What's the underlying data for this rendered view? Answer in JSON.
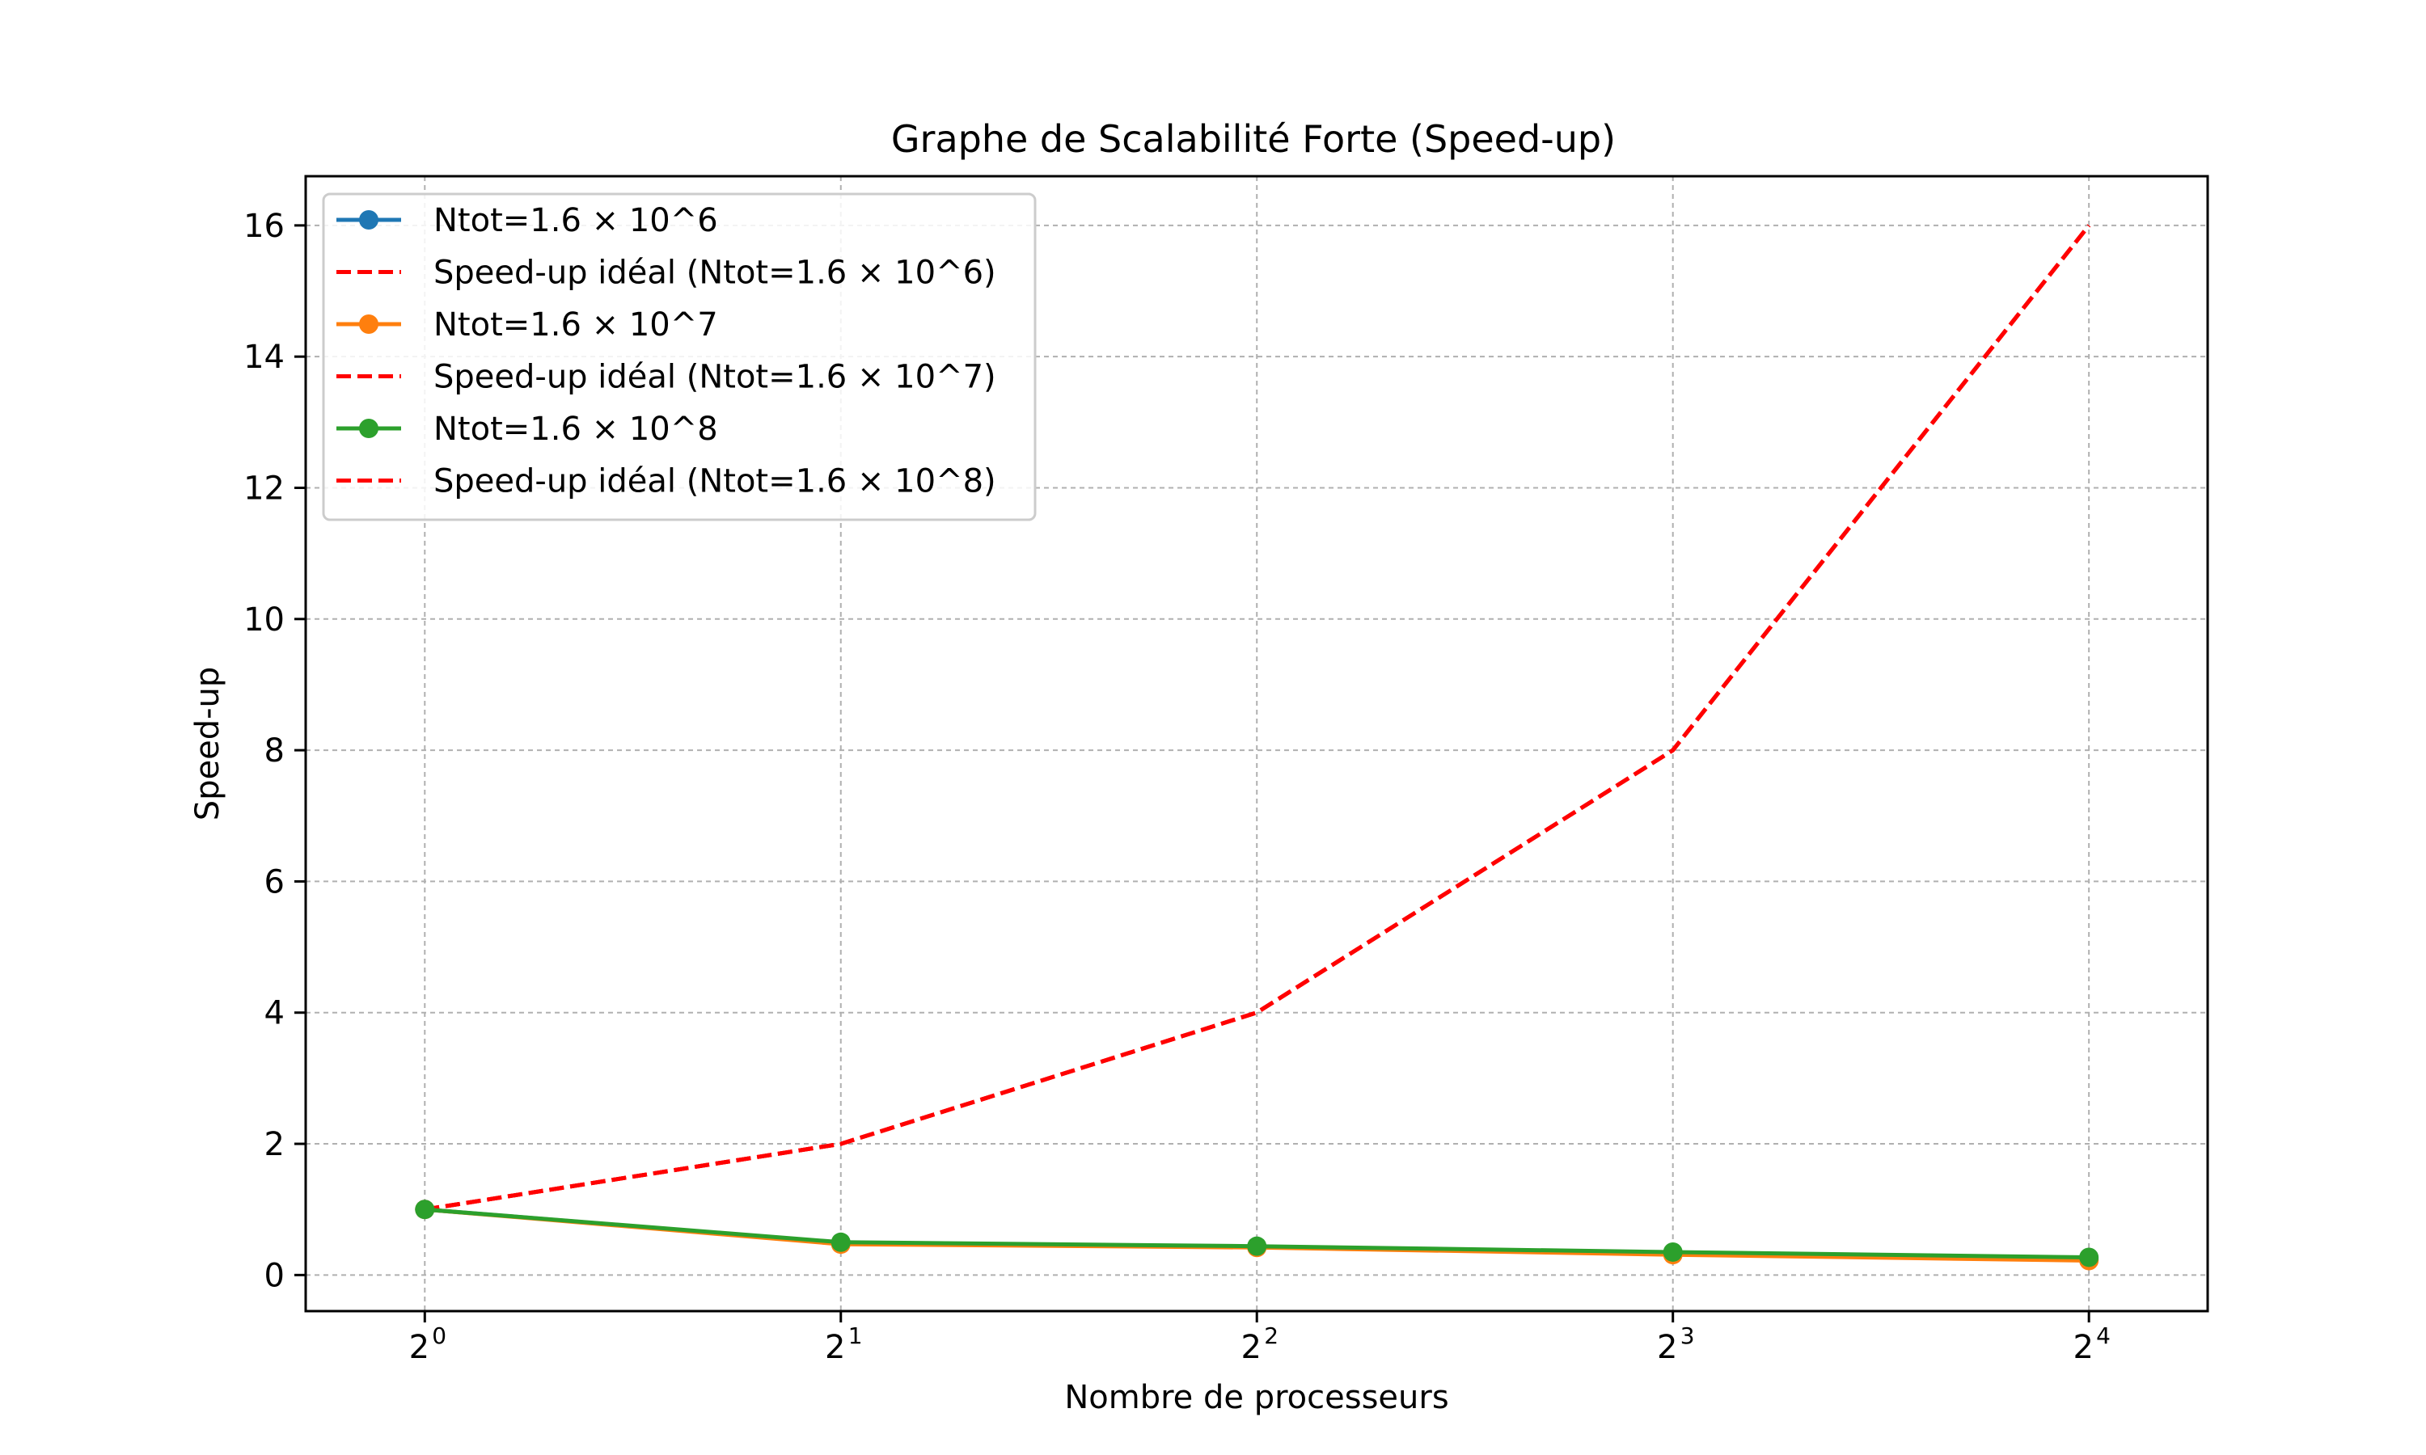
{
  "chart_data": {
    "type": "line",
    "title": "Graphe de Scalabilité Forte (Speed-up)",
    "xlabel": "Nombre de processeurs",
    "ylabel": "Speed-up",
    "x_scale": "log2",
    "x": [
      1,
      2,
      4,
      8,
      16
    ],
    "x_ticks": [
      {
        "base": "2",
        "exp": "0"
      },
      {
        "base": "2",
        "exp": "1"
      },
      {
        "base": "2",
        "exp": "2"
      },
      {
        "base": "2",
        "exp": "3"
      },
      {
        "base": "2",
        "exp": "4"
      }
    ],
    "y_ticks": [
      "0",
      "2",
      "4",
      "6",
      "8",
      "10",
      "12",
      "14",
      "16"
    ],
    "ylim": [
      -0.55,
      16.75
    ],
    "xlim": [
      0.82,
      19.5
    ],
    "grid": true,
    "legend_position": "upper-left",
    "series": [
      {
        "name": "Ntot=1.6 × 10^6",
        "values": [
          1.0,
          0.49,
          0.43,
          0.33,
          0.24
        ],
        "color": "#1f77b4",
        "style": "solid",
        "marker": "circle"
      },
      {
        "name": "Speed-up idéal (Ntot=1.6 × 10^6)",
        "values": [
          1,
          2,
          4,
          8,
          16
        ],
        "color": "#ff0000",
        "style": "dashed",
        "marker": "none"
      },
      {
        "name": "Ntot=1.6 × 10^7",
        "values": [
          1.0,
          0.47,
          0.42,
          0.31,
          0.22
        ],
        "color": "#ff7f0e",
        "style": "solid",
        "marker": "circle"
      },
      {
        "name": "Speed-up idéal (Ntot=1.6 × 10^7)",
        "values": [
          1,
          2,
          4,
          8,
          16
        ],
        "color": "#ff0000",
        "style": "dashed",
        "marker": "none"
      },
      {
        "name": "Ntot=1.6 × 10^8",
        "values": [
          1.0,
          0.5,
          0.44,
          0.35,
          0.27
        ],
        "color": "#2ca02c",
        "style": "solid",
        "marker": "circle"
      },
      {
        "name": "Speed-up idéal (Ntot=1.6 × 10^8)",
        "values": [
          1,
          2,
          4,
          8,
          16
        ],
        "color": "#ff0000",
        "style": "dashed",
        "marker": "none"
      }
    ]
  }
}
